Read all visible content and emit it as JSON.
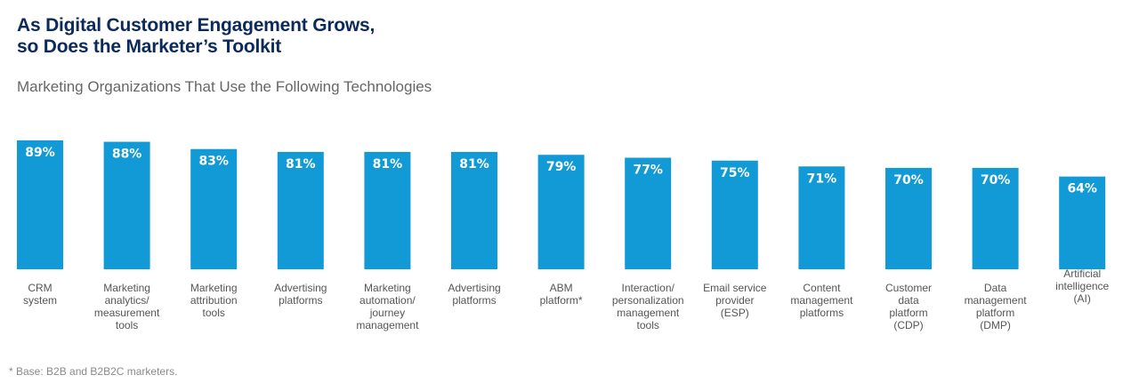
{
  "header": {
    "title_line1": "As Digital Customer Engagement Grows,",
    "title_line2": "so Does the Marketer’s Toolkit",
    "subtitle": "Marketing Organizations That Use the Following Technologies"
  },
  "footnote": "* Base: B2B and B2B2C marketers.",
  "colors": {
    "bar": "#129ad6",
    "title": "#0b2a5b"
  },
  "chart_data": {
    "type": "bar",
    "title": "Marketing Organizations That Use the Following Technologies",
    "xlabel": "",
    "ylabel": "",
    "ylim": [
      0,
      100
    ],
    "grid": false,
    "legend": "none",
    "categories": [
      [
        "CRM",
        "system"
      ],
      [
        "Marketing",
        "analytics/",
        "measurement",
        "tools"
      ],
      [
        "Marketing",
        "attribution",
        "tools"
      ],
      [
        "Advertising",
        "platforms"
      ],
      [
        "Marketing",
        "automation/",
        "journey",
        "management"
      ],
      [
        "Advertising",
        "platforms"
      ],
      [
        "ABM",
        "platform*"
      ],
      [
        "Interaction/",
        "personalization",
        "management",
        "tools"
      ],
      [
        "Email service",
        "provider",
        "(ESP)"
      ],
      [
        "Content",
        "management",
        "platforms"
      ],
      [
        "Customer",
        "data",
        "platform",
        "(CDP)"
      ],
      [
        "Data",
        "management",
        "platform",
        "(DMP)"
      ],
      [
        "Artificial",
        "intelligence",
        "(AI)"
      ]
    ],
    "values": [
      89,
      88,
      83,
      81,
      81,
      81,
      79,
      77,
      75,
      71,
      70,
      70,
      64
    ],
    "value_labels": [
      "89%",
      "88%",
      "83%",
      "81%",
      "81%",
      "81%",
      "79%",
      "77%",
      "75%",
      "71%",
      "70%",
      "70%",
      "64%"
    ]
  }
}
